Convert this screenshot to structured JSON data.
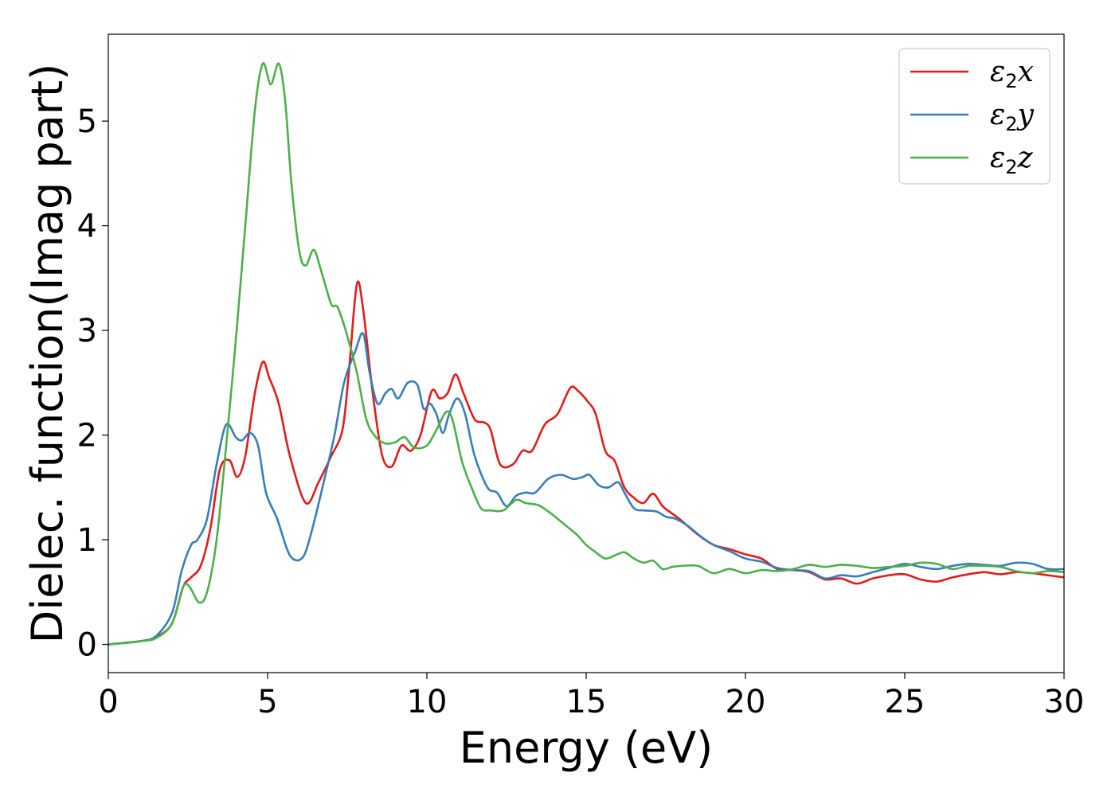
{
  "chart_data": {
    "type": "line",
    "xlabel": "Energy (eV)",
    "ylabel": "Dielec. function(Imag part)",
    "xlim": [
      0,
      30
    ],
    "ylim": [
      -0.27,
      5.83
    ],
    "xticks": [
      0,
      5,
      10,
      15,
      20,
      25,
      30
    ],
    "yticks": [
      0,
      1,
      2,
      3,
      4,
      5
    ],
    "grid": false,
    "legend_position": "top-right",
    "series": [
      {
        "name": "ε2x",
        "legend": {
          "base": "ε",
          "sub": "2",
          "tail": "x"
        },
        "color": "#e41a1c",
        "x": [
          0,
          1,
          1.5,
          2.0,
          2.35,
          2.6,
          2.9,
          3.2,
          3.5,
          3.8,
          4.05,
          4.3,
          4.6,
          4.85,
          5.05,
          5.35,
          5.7,
          6.2,
          6.6,
          7.0,
          7.35,
          7.55,
          7.8,
          8.0,
          8.3,
          8.6,
          8.9,
          9.2,
          9.5,
          9.8,
          10.15,
          10.4,
          10.65,
          10.9,
          11.15,
          11.5,
          11.8,
          12.0,
          12.3,
          12.7,
          13.0,
          13.3,
          13.7,
          14.1,
          14.5,
          14.75,
          15.05,
          15.3,
          15.6,
          15.9,
          16.2,
          16.5,
          16.8,
          17.1,
          17.4,
          17.7,
          18.0,
          18.5,
          19.0,
          19.5,
          20.0,
          20.5,
          21.0,
          21.5,
          22.0,
          22.5,
          23.0,
          23.5,
          24.0,
          24.5,
          25.0,
          25.5,
          26.0,
          26.5,
          27.0,
          27.5,
          28.0,
          28.5,
          29.0,
          29.5,
          30
        ],
        "y": [
          0,
          0.03,
          0.07,
          0.2,
          0.55,
          0.64,
          0.75,
          1.1,
          1.67,
          1.76,
          1.6,
          1.8,
          2.4,
          2.7,
          2.55,
          2.3,
          1.8,
          1.35,
          1.55,
          1.8,
          2.05,
          2.6,
          3.44,
          3.2,
          2.4,
          1.8,
          1.7,
          1.9,
          1.85,
          2.0,
          2.42,
          2.35,
          2.4,
          2.58,
          2.4,
          2.15,
          2.12,
          2.05,
          1.72,
          1.72,
          1.85,
          1.85,
          2.1,
          2.2,
          2.45,
          2.42,
          2.32,
          2.2,
          1.85,
          1.75,
          1.5,
          1.4,
          1.35,
          1.44,
          1.32,
          1.25,
          1.18,
          1.05,
          0.95,
          0.91,
          0.86,
          0.82,
          0.72,
          0.71,
          0.69,
          0.62,
          0.63,
          0.58,
          0.63,
          0.66,
          0.67,
          0.62,
          0.6,
          0.64,
          0.67,
          0.69,
          0.67,
          0.69,
          0.68,
          0.66,
          0.64
        ]
      },
      {
        "name": "ε2y",
        "legend": {
          "base": "ε",
          "sub": "2",
          "tail": "y"
        },
        "color": "#377eb8",
        "x": [
          0,
          1,
          1.5,
          2.0,
          2.3,
          2.6,
          2.8,
          3.1,
          3.4,
          3.7,
          4.0,
          4.2,
          4.45,
          4.7,
          4.95,
          5.3,
          5.7,
          6.1,
          6.4,
          6.8,
          7.1,
          7.4,
          7.75,
          8.0,
          8.2,
          8.45,
          8.7,
          8.9,
          9.1,
          9.4,
          9.7,
          9.9,
          10.1,
          10.3,
          10.5,
          10.7,
          10.95,
          11.2,
          11.5,
          11.9,
          12.2,
          12.5,
          12.8,
          13.1,
          13.4,
          13.8,
          14.2,
          14.6,
          14.9,
          15.1,
          15.4,
          15.7,
          16.0,
          16.2,
          16.5,
          16.8,
          17.2,
          17.5,
          17.8,
          18.2,
          18.6,
          19.0,
          19.5,
          20.0,
          20.5,
          21.0,
          21.5,
          22.0,
          22.5,
          23.0,
          23.5,
          24.0,
          24.5,
          25.0,
          25.5,
          26.0,
          26.5,
          27.0,
          27.5,
          28.0,
          28.5,
          29.0,
          29.5,
          30
        ],
        "y": [
          0,
          0.03,
          0.08,
          0.3,
          0.7,
          0.95,
          1.0,
          1.2,
          1.72,
          2.1,
          1.98,
          1.95,
          2.02,
          1.9,
          1.45,
          1.2,
          0.85,
          0.83,
          1.1,
          1.6,
          2.0,
          2.5,
          2.8,
          2.97,
          2.6,
          2.3,
          2.4,
          2.44,
          2.35,
          2.5,
          2.48,
          2.25,
          2.3,
          2.2,
          2.02,
          2.2,
          2.35,
          2.2,
          1.8,
          1.5,
          1.45,
          1.32,
          1.42,
          1.45,
          1.45,
          1.58,
          1.62,
          1.58,
          1.6,
          1.62,
          1.52,
          1.5,
          1.55,
          1.45,
          1.3,
          1.28,
          1.27,
          1.22,
          1.2,
          1.13,
          1.03,
          0.95,
          0.89,
          0.82,
          0.79,
          0.73,
          0.71,
          0.7,
          0.63,
          0.66,
          0.65,
          0.69,
          0.73,
          0.77,
          0.74,
          0.72,
          0.75,
          0.77,
          0.76,
          0.75,
          0.78,
          0.77,
          0.72,
          0.72
        ]
      },
      {
        "name": "ε2z",
        "legend": {
          "base": "ε",
          "sub": "2",
          "tail": "z"
        },
        "color": "#4daf4a",
        "x": [
          0,
          1,
          1.5,
          2.0,
          2.35,
          2.55,
          2.85,
          3.1,
          3.4,
          3.7,
          4.0,
          4.3,
          4.6,
          4.85,
          5.1,
          5.35,
          5.55,
          5.75,
          6.0,
          6.2,
          6.45,
          6.7,
          7.0,
          7.2,
          7.5,
          7.8,
          8.1,
          8.4,
          8.7,
          9.0,
          9.3,
          9.6,
          10.0,
          10.3,
          10.6,
          10.8,
          11.1,
          11.4,
          11.7,
          12.0,
          12.4,
          12.8,
          13.1,
          13.5,
          13.9,
          14.3,
          14.7,
          15.0,
          15.3,
          15.6,
          15.9,
          16.2,
          16.5,
          16.8,
          17.1,
          17.4,
          17.7,
          18.0,
          18.5,
          19.0,
          19.5,
          20.0,
          20.5,
          21.0,
          21.5,
          22.0,
          22.5,
          23.0,
          23.5,
          24.0,
          24.5,
          25.0,
          25.5,
          26.0,
          26.5,
          27.0,
          27.5,
          28.0,
          28.5,
          29.0,
          29.5,
          30
        ],
        "y": [
          0,
          0.03,
          0.06,
          0.2,
          0.55,
          0.55,
          0.4,
          0.5,
          1.0,
          1.9,
          2.9,
          4.0,
          5.1,
          5.55,
          5.35,
          5.55,
          5.2,
          4.4,
          3.75,
          3.62,
          3.77,
          3.55,
          3.25,
          3.22,
          2.95,
          2.6,
          2.15,
          1.98,
          1.92,
          1.93,
          1.98,
          1.88,
          1.9,
          2.05,
          2.22,
          2.15,
          1.75,
          1.5,
          1.3,
          1.28,
          1.28,
          1.38,
          1.35,
          1.33,
          1.25,
          1.15,
          1.05,
          0.95,
          0.88,
          0.82,
          0.85,
          0.88,
          0.82,
          0.78,
          0.8,
          0.72,
          0.74,
          0.75,
          0.75,
          0.68,
          0.72,
          0.68,
          0.71,
          0.7,
          0.72,
          0.76,
          0.74,
          0.76,
          0.75,
          0.73,
          0.74,
          0.75,
          0.78,
          0.77,
          0.72,
          0.75,
          0.75,
          0.74,
          0.7,
          0.68,
          0.7,
          0.69
        ]
      }
    ]
  }
}
